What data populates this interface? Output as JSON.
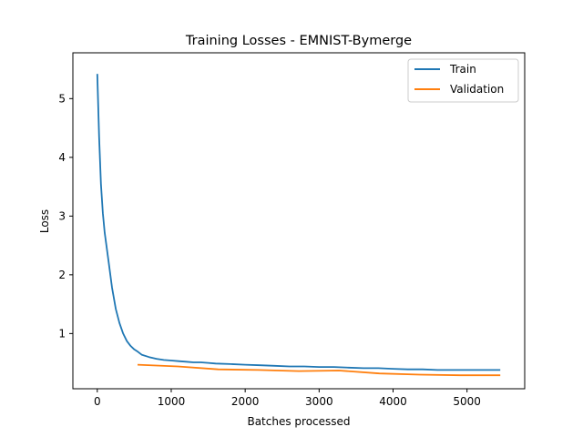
{
  "chart_data": {
    "type": "line",
    "title": "Training Losses - EMNIST-Bymerge",
    "xlabel": "Batches processed",
    "ylabel": "Loss",
    "xlim": [
      -330,
      5780
    ],
    "ylim": [
      0.06,
      5.78
    ],
    "xticks": [
      0,
      1000,
      2000,
      3000,
      4000,
      5000
    ],
    "yticks": [
      1,
      2,
      3,
      4,
      5
    ],
    "grid": false,
    "legend_position": "top-right",
    "series": [
      {
        "name": "Train",
        "color": "#1f77b4",
        "x": [
          0,
          25,
          50,
          75,
          100,
          150,
          200,
          250,
          300,
          350,
          400,
          450,
          500,
          550,
          600,
          700,
          800,
          900,
          1000,
          1100,
          1200,
          1300,
          1400,
          1500,
          1600,
          1800,
          2000,
          2200,
          2400,
          2600,
          2800,
          3000,
          3200,
          3400,
          3600,
          3800,
          4000,
          4200,
          4400,
          4600,
          4800,
          5000,
          5200,
          5450
        ],
        "y": [
          5.42,
          4.35,
          3.55,
          3.05,
          2.72,
          2.25,
          1.78,
          1.42,
          1.18,
          1.0,
          0.87,
          0.79,
          0.73,
          0.69,
          0.64,
          0.6,
          0.57,
          0.55,
          0.54,
          0.53,
          0.52,
          0.51,
          0.51,
          0.5,
          0.49,
          0.48,
          0.47,
          0.46,
          0.45,
          0.44,
          0.44,
          0.43,
          0.43,
          0.42,
          0.41,
          0.41,
          0.4,
          0.39,
          0.39,
          0.38,
          0.38,
          0.38,
          0.38,
          0.38
        ]
      },
      {
        "name": "Validation",
        "color": "#ff7f0e",
        "x": [
          545,
          1090,
          1635,
          2180,
          2725,
          3270,
          3815,
          4360,
          4905,
          5450
        ],
        "y": [
          0.47,
          0.44,
          0.39,
          0.38,
          0.36,
          0.37,
          0.32,
          0.3,
          0.29,
          0.29
        ]
      }
    ]
  }
}
